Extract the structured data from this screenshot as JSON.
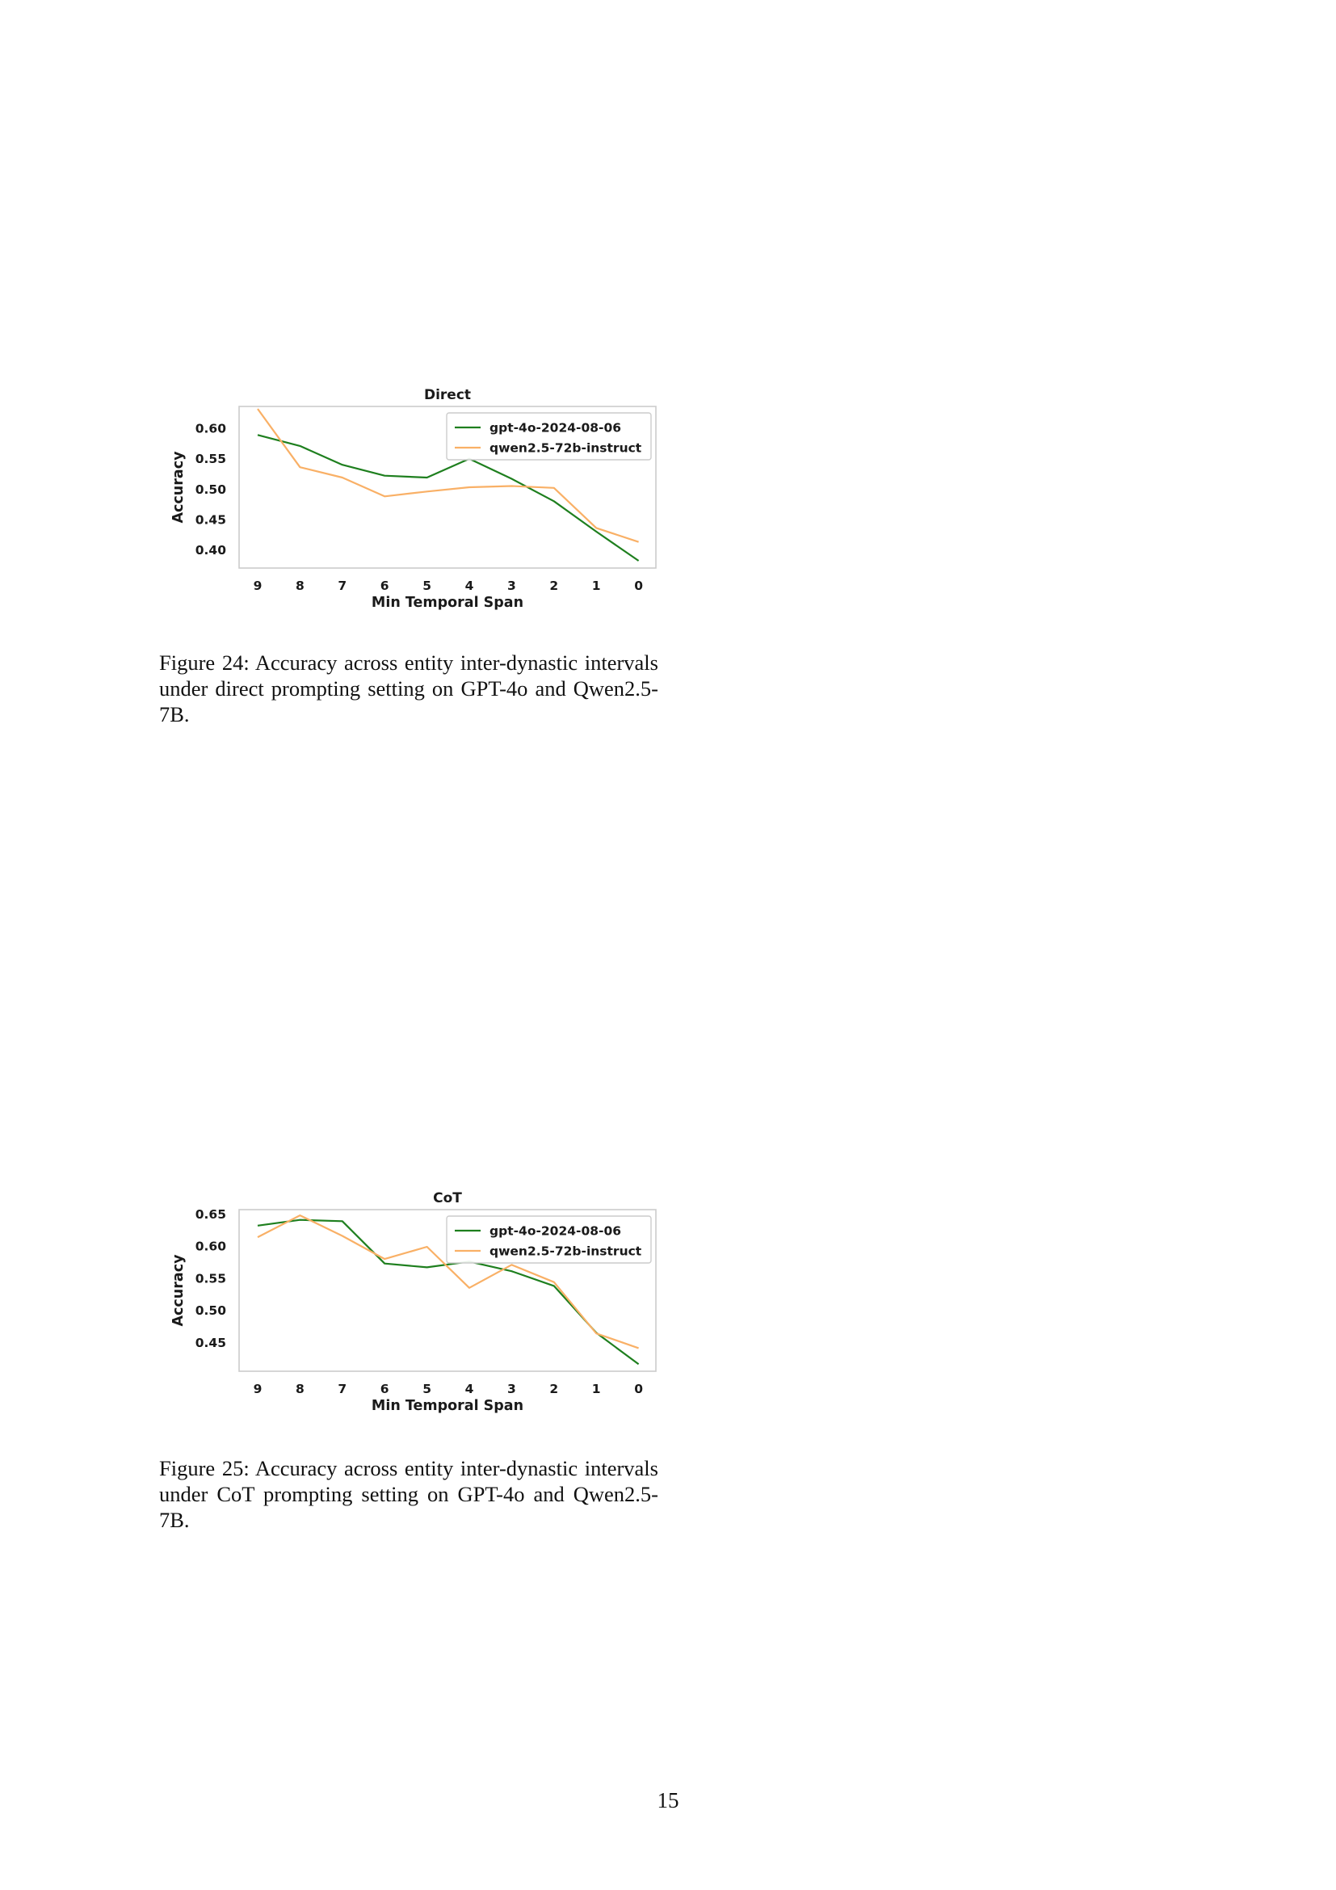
{
  "chart_data": [
    {
      "type": "line",
      "title": "Direct",
      "xlabel": "Min Temporal Span",
      "ylabel": "Accuracy",
      "categories": [
        "9",
        "8",
        "7",
        "6",
        "5",
        "4",
        "3",
        "2",
        "1",
        "0"
      ],
      "ylim": [
        0.37,
        0.636
      ],
      "yticks": [
        "0.40",
        "0.45",
        "0.50",
        "0.55",
        "0.60"
      ],
      "grid": false,
      "legend_position": "top-right",
      "series": [
        {
          "name": "gpt-4o-2024-08-06",
          "color": "#1e7f1e",
          "values": [
            0.589,
            0.571,
            0.54,
            0.522,
            0.519,
            0.55,
            0.517,
            0.48,
            0.43,
            0.382
          ]
        },
        {
          "name": "qwen2.5-72b-instruct",
          "color": "#f9b066",
          "values": [
            0.632,
            0.536,
            0.519,
            0.488,
            0.496,
            0.503,
            0.505,
            0.502,
            0.436,
            0.413
          ]
        }
      ]
    },
    {
      "type": "line",
      "title": "CoT",
      "xlabel": "Min Temporal Span",
      "ylabel": "Accuracy",
      "categories": [
        "9",
        "8",
        "7",
        "6",
        "5",
        "4",
        "3",
        "2",
        "1",
        "0"
      ],
      "ylim": [
        0.405,
        0.657
      ],
      "yticks": [
        "0.45",
        "0.50",
        "0.55",
        "0.60",
        "0.65"
      ],
      "grid": false,
      "legend_position": "top-right",
      "series": [
        {
          "name": "gpt-4o-2024-08-06",
          "color": "#1e7f1e",
          "values": [
            0.632,
            0.641,
            0.639,
            0.573,
            0.567,
            0.576,
            0.561,
            0.538,
            0.465,
            0.416
          ]
        },
        {
          "name": "qwen2.5-72b-instruct",
          "color": "#f9b066",
          "values": [
            0.614,
            0.648,
            0.616,
            0.58,
            0.599,
            0.535,
            0.571,
            0.544,
            0.464,
            0.441
          ]
        }
      ]
    }
  ],
  "captions": [
    {
      "label": "Figure 24:",
      "text": "Accuracy across entity inter-dynastic intervals under direct prompting setting on GPT-4o and Qwen2.5-7B."
    },
    {
      "label": "Figure 25:",
      "text": "Accuracy across entity inter-dynastic intervals under CoT prompting setting on GPT-4o and Qwen2.5-7B."
    }
  ],
  "page_number": "15"
}
